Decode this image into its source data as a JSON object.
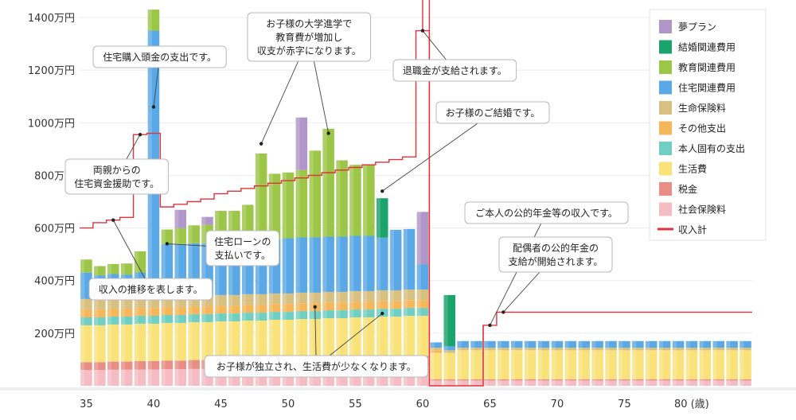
{
  "chart_data": {
    "type": "bar",
    "stacked": true,
    "x_unit": "歳",
    "x_start": 35,
    "x_end": 84,
    "x_ticks": [
      35,
      40,
      45,
      50,
      55,
      60,
      65,
      70,
      75,
      80
    ],
    "x_last_tick_suffix": " (歳)",
    "y_ticks": [
      200,
      400,
      600,
      800,
      1000,
      1200,
      1400
    ],
    "y_tick_suffix": "万円",
    "ylim": [
      0,
      1400
    ],
    "series": [
      {
        "key": "shakai",
        "name": "社会保険料",
        "color": "#f6bcc4"
      },
      {
        "key": "zeikin",
        "name": "税金",
        "color": "#e88e86"
      },
      {
        "key": "seikatsu",
        "name": "生活費",
        "color": "#f9e27a"
      },
      {
        "key": "honnin",
        "name": "本人固有の支出",
        "color": "#6fcfc2"
      },
      {
        "key": "sonota",
        "name": "その他支出",
        "color": "#f6b75a"
      },
      {
        "key": "seimei",
        "name": "生命保険料",
        "color": "#d8c080"
      },
      {
        "key": "jutaku",
        "name": "住宅関連費用",
        "color": "#5aa9e6"
      },
      {
        "key": "kyoiku",
        "name": "教育関連費用",
        "color": "#9cc648"
      },
      {
        "key": "kekkon",
        "name": "結婚関連費用",
        "color": "#1aa36a"
      },
      {
        "key": "yume",
        "name": "夢プラン",
        "color": "#b196c9"
      }
    ],
    "legend_order": [
      "yume",
      "kekkon",
      "kyoiku",
      "jutaku",
      "seimei",
      "sonota",
      "honnin",
      "seikatsu",
      "zeikin",
      "shakai",
      "income"
    ],
    "income_series": {
      "key": "income",
      "name": "収入計",
      "color": "#e0323a"
    },
    "bars": [
      {
        "age": 35,
        "shakai": 60,
        "zeikin": 30,
        "seikatsu": 140,
        "honnin": 30,
        "sonota": 30,
        "seimei": 40,
        "jutaku": 100,
        "kyoiku": 50,
        "kekkon": 0,
        "yume": 0
      },
      {
        "age": 36,
        "shakai": 60,
        "zeikin": 30,
        "seikatsu": 140,
        "honnin": 30,
        "sonota": 30,
        "seimei": 40,
        "jutaku": 90,
        "kyoiku": 35,
        "kekkon": 0,
        "yume": 0
      },
      {
        "age": 37,
        "shakai": 61,
        "zeikin": 31,
        "seikatsu": 141,
        "honnin": 30,
        "sonota": 30,
        "seimei": 40,
        "jutaku": 92,
        "kyoiku": 38,
        "kekkon": 0,
        "yume": 0
      },
      {
        "age": 38,
        "shakai": 61,
        "zeikin": 31,
        "seikatsu": 141,
        "honnin": 30,
        "sonota": 30,
        "seimei": 40,
        "jutaku": 90,
        "kyoiku": 42,
        "kekkon": 0,
        "yume": 0
      },
      {
        "age": 39,
        "shakai": 62,
        "zeikin": 32,
        "seikatsu": 142,
        "honnin": 30,
        "sonota": 30,
        "seimei": 40,
        "jutaku": 95,
        "kyoiku": 80,
        "kekkon": 0,
        "yume": 0
      },
      {
        "age": 40,
        "shakai": 62,
        "zeikin": 32,
        "seikatsu": 142,
        "honnin": 30,
        "sonota": 30,
        "seimei": 40,
        "jutaku": 1014,
        "kyoiku": 80,
        "kekkon": 0,
        "yume": 0
      },
      {
        "age": 41,
        "shakai": 63,
        "zeikin": 33,
        "seikatsu": 143,
        "honnin": 30,
        "sonota": 30,
        "seimei": 40,
        "jutaku": 200,
        "kyoiku": 55,
        "kekkon": 0,
        "yume": 0
      },
      {
        "age": 42,
        "shakai": 63,
        "zeikin": 33,
        "seikatsu": 143,
        "honnin": 30,
        "sonota": 30,
        "seimei": 40,
        "jutaku": 200,
        "kyoiku": 60,
        "kekkon": 0,
        "yume": 70
      },
      {
        "age": 43,
        "shakai": 64,
        "zeikin": 34,
        "seikatsu": 144,
        "honnin": 30,
        "sonota": 30,
        "seimei": 40,
        "jutaku": 200,
        "kyoiku": 68,
        "kekkon": 0,
        "yume": 0
      },
      {
        "age": 44,
        "shakai": 64,
        "zeikin": 34,
        "seikatsu": 144,
        "honnin": 30,
        "sonota": 30,
        "seimei": 40,
        "jutaku": 200,
        "kyoiku": 70,
        "kekkon": 0,
        "yume": 30
      },
      {
        "age": 45,
        "shakai": 65,
        "zeikin": 35,
        "seikatsu": 145,
        "honnin": 30,
        "sonota": 30,
        "seimei": 40,
        "jutaku": 200,
        "kyoiku": 120,
        "kekkon": 0,
        "yume": 0
      },
      {
        "age": 46,
        "shakai": 65,
        "zeikin": 35,
        "seikatsu": 145,
        "honnin": 30,
        "sonota": 30,
        "seimei": 40,
        "jutaku": 200,
        "kyoiku": 120,
        "kekkon": 0,
        "yume": 0
      },
      {
        "age": 47,
        "shakai": 66,
        "zeikin": 36,
        "seikatsu": 146,
        "honnin": 30,
        "sonota": 30,
        "seimei": 40,
        "jutaku": 205,
        "kyoiku": 135,
        "kekkon": 0,
        "yume": 0
      },
      {
        "age": 48,
        "shakai": 66,
        "zeikin": 36,
        "seikatsu": 146,
        "honnin": 30,
        "sonota": 30,
        "seimei": 40,
        "jutaku": 205,
        "kyoiku": 330,
        "kekkon": 0,
        "yume": 0
      },
      {
        "age": 49,
        "shakai": 67,
        "zeikin": 37,
        "seikatsu": 147,
        "honnin": 30,
        "sonota": 30,
        "seimei": 40,
        "jutaku": 205,
        "kyoiku": 250,
        "kekkon": 0,
        "yume": 0
      },
      {
        "age": 50,
        "shakai": 67,
        "zeikin": 37,
        "seikatsu": 147,
        "honnin": 30,
        "sonota": 30,
        "seimei": 40,
        "jutaku": 210,
        "kyoiku": 250,
        "kekkon": 0,
        "yume": 0
      },
      {
        "age": 51,
        "shakai": 68,
        "zeikin": 38,
        "seikatsu": 148,
        "honnin": 30,
        "sonota": 30,
        "seimei": 40,
        "jutaku": 210,
        "kyoiku": 256,
        "kekkon": 0,
        "yume": 200
      },
      {
        "age": 52,
        "shakai": 68,
        "zeikin": 38,
        "seikatsu": 148,
        "honnin": 30,
        "sonota": 30,
        "seimei": 40,
        "jutaku": 210,
        "kyoiku": 330,
        "kekkon": 0,
        "yume": 0
      },
      {
        "age": 53,
        "shakai": 69,
        "zeikin": 39,
        "seikatsu": 149,
        "honnin": 30,
        "sonota": 30,
        "seimei": 40,
        "jutaku": 210,
        "kyoiku": 410,
        "kekkon": 0,
        "yume": 0
      },
      {
        "age": 54,
        "shakai": 69,
        "zeikin": 39,
        "seikatsu": 149,
        "honnin": 30,
        "sonota": 30,
        "seimei": 40,
        "jutaku": 210,
        "kyoiku": 290,
        "kekkon": 0,
        "yume": 0
      },
      {
        "age": 55,
        "shakai": 70,
        "zeikin": 40,
        "seikatsu": 150,
        "honnin": 30,
        "sonota": 30,
        "seimei": 40,
        "jutaku": 210,
        "kyoiku": 270,
        "kekkon": 0,
        "yume": 0
      },
      {
        "age": 56,
        "shakai": 70,
        "zeikin": 40,
        "seikatsu": 150,
        "honnin": 30,
        "sonota": 30,
        "seimei": 40,
        "jutaku": 210,
        "kyoiku": 270,
        "kekkon": 0,
        "yume": 0
      },
      {
        "age": 57,
        "shakai": 71,
        "zeikin": 41,
        "seikatsu": 151,
        "honnin": 30,
        "sonota": 30,
        "seimei": 40,
        "jutaku": 200,
        "kyoiku": 0,
        "kekkon": 150,
        "yume": 0
      },
      {
        "age": 58,
        "shakai": 71,
        "zeikin": 41,
        "seikatsu": 151,
        "honnin": 30,
        "sonota": 30,
        "seimei": 40,
        "jutaku": 230,
        "kyoiku": 0,
        "kekkon": 0,
        "yume": 0
      },
      {
        "age": 59,
        "shakai": 72,
        "zeikin": 42,
        "seikatsu": 152,
        "honnin": 30,
        "sonota": 30,
        "seimei": 40,
        "jutaku": 230,
        "kyoiku": 0,
        "kekkon": 0,
        "yume": 0
      },
      {
        "age": 60,
        "shakai": 72,
        "zeikin": 42,
        "seikatsu": 152,
        "honnin": 30,
        "sonota": 30,
        "seimei": 40,
        "jutaku": 95,
        "kyoiku": 0,
        "kekkon": 0,
        "yume": 200
      },
      {
        "age": 61,
        "shakai": 20,
        "zeikin": 5,
        "seikatsu": 100,
        "honnin": 0,
        "sonota": 10,
        "seimei": 10,
        "jutaku": 20,
        "kyoiku": 0,
        "kekkon": 0,
        "yume": 0
      },
      {
        "age": 62,
        "shakai": 20,
        "zeikin": 5,
        "seikatsu": 100,
        "honnin": 0,
        "sonota": 0,
        "seimei": 10,
        "jutaku": 15,
        "kyoiku": 0,
        "kekkon": 195,
        "yume": 0
      },
      {
        "age": 63,
        "shakai": 20,
        "zeikin": 5,
        "seikatsu": 110,
        "honnin": 0,
        "sonota": 0,
        "seimei": 10,
        "jutaku": 25,
        "kyoiku": 0,
        "kekkon": 0,
        "yume": 0
      },
      {
        "age": 64,
        "shakai": 20,
        "zeikin": 5,
        "seikatsu": 110,
        "honnin": 0,
        "sonota": 0,
        "seimei": 10,
        "jutaku": 25,
        "kyoiku": 0,
        "kekkon": 0,
        "yume": 0
      },
      {
        "age": 65,
        "shakai": 20,
        "zeikin": 5,
        "seikatsu": 110,
        "honnin": 0,
        "sonota": 0,
        "seimei": 10,
        "jutaku": 25,
        "kyoiku": 0,
        "kekkon": 0,
        "yume": 0
      },
      {
        "age": 66,
        "shakai": 20,
        "zeikin": 5,
        "seikatsu": 110,
        "honnin": 0,
        "sonota": 0,
        "seimei": 10,
        "jutaku": 25,
        "kyoiku": 0,
        "kekkon": 0,
        "yume": 0
      },
      {
        "age": 67,
        "shakai": 20,
        "zeikin": 5,
        "seikatsu": 110,
        "honnin": 0,
        "sonota": 0,
        "seimei": 10,
        "jutaku": 25,
        "kyoiku": 0,
        "kekkon": 0,
        "yume": 0
      },
      {
        "age": 68,
        "shakai": 20,
        "zeikin": 5,
        "seikatsu": 110,
        "honnin": 0,
        "sonota": 0,
        "seimei": 10,
        "jutaku": 25,
        "kyoiku": 0,
        "kekkon": 0,
        "yume": 0
      },
      {
        "age": 69,
        "shakai": 20,
        "zeikin": 5,
        "seikatsu": 110,
        "honnin": 0,
        "sonota": 0,
        "seimei": 10,
        "jutaku": 25,
        "kyoiku": 0,
        "kekkon": 0,
        "yume": 0
      },
      {
        "age": 70,
        "shakai": 20,
        "zeikin": 5,
        "seikatsu": 110,
        "honnin": 0,
        "sonota": 0,
        "seimei": 10,
        "jutaku": 25,
        "kyoiku": 0,
        "kekkon": 0,
        "yume": 0
      },
      {
        "age": 71,
        "shakai": 20,
        "zeikin": 5,
        "seikatsu": 110,
        "honnin": 0,
        "sonota": 0,
        "seimei": 10,
        "jutaku": 25,
        "kyoiku": 0,
        "kekkon": 0,
        "yume": 0
      },
      {
        "age": 72,
        "shakai": 20,
        "zeikin": 5,
        "seikatsu": 110,
        "honnin": 0,
        "sonota": 0,
        "seimei": 10,
        "jutaku": 25,
        "kyoiku": 0,
        "kekkon": 0,
        "yume": 0
      },
      {
        "age": 73,
        "shakai": 20,
        "zeikin": 5,
        "seikatsu": 110,
        "honnin": 0,
        "sonota": 0,
        "seimei": 10,
        "jutaku": 25,
        "kyoiku": 0,
        "kekkon": 0,
        "yume": 0
      },
      {
        "age": 74,
        "shakai": 20,
        "zeikin": 5,
        "seikatsu": 110,
        "honnin": 0,
        "sonota": 0,
        "seimei": 10,
        "jutaku": 25,
        "kyoiku": 0,
        "kekkon": 0,
        "yume": 0
      },
      {
        "age": 75,
        "shakai": 20,
        "zeikin": 5,
        "seikatsu": 110,
        "honnin": 0,
        "sonota": 0,
        "seimei": 10,
        "jutaku": 25,
        "kyoiku": 0,
        "kekkon": 0,
        "yume": 0
      },
      {
        "age": 76,
        "shakai": 20,
        "zeikin": 5,
        "seikatsu": 110,
        "honnin": 0,
        "sonota": 0,
        "seimei": 10,
        "jutaku": 25,
        "kyoiku": 0,
        "kekkon": 0,
        "yume": 0
      },
      {
        "age": 77,
        "shakai": 20,
        "zeikin": 5,
        "seikatsu": 110,
        "honnin": 0,
        "sonota": 0,
        "seimei": 10,
        "jutaku": 25,
        "kyoiku": 0,
        "kekkon": 0,
        "yume": 0
      },
      {
        "age": 78,
        "shakai": 20,
        "zeikin": 5,
        "seikatsu": 110,
        "honnin": 0,
        "sonota": 0,
        "seimei": 10,
        "jutaku": 25,
        "kyoiku": 0,
        "kekkon": 0,
        "yume": 0
      },
      {
        "age": 79,
        "shakai": 20,
        "zeikin": 5,
        "seikatsu": 110,
        "honnin": 0,
        "sonota": 0,
        "seimei": 10,
        "jutaku": 25,
        "kyoiku": 0,
        "kekkon": 0,
        "yume": 0
      },
      {
        "age": 80,
        "shakai": 20,
        "zeikin": 5,
        "seikatsu": 110,
        "honnin": 0,
        "sonota": 0,
        "seimei": 10,
        "jutaku": 25,
        "kyoiku": 0,
        "kekkon": 0,
        "yume": 0
      },
      {
        "age": 81,
        "shakai": 20,
        "zeikin": 5,
        "seikatsu": 110,
        "honnin": 0,
        "sonota": 0,
        "seimei": 10,
        "jutaku": 25,
        "kyoiku": 0,
        "kekkon": 0,
        "yume": 0
      },
      {
        "age": 82,
        "shakai": 20,
        "zeikin": 5,
        "seikatsu": 110,
        "honnin": 0,
        "sonota": 0,
        "seimei": 10,
        "jutaku": 25,
        "kyoiku": 0,
        "kekkon": 0,
        "yume": 0
      },
      {
        "age": 83,
        "shakai": 20,
        "zeikin": 5,
        "seikatsu": 110,
        "honnin": 0,
        "sonota": 0,
        "seimei": 10,
        "jutaku": 25,
        "kyoiku": 0,
        "kekkon": 0,
        "yume": 0
      },
      {
        "age": 84,
        "shakai": 20,
        "zeikin": 5,
        "seikatsu": 110,
        "honnin": 0,
        "sonota": 0,
        "seimei": 10,
        "jutaku": 25,
        "kyoiku": 0,
        "kekkon": 0,
        "yume": 0
      }
    ],
    "income_line": [
      {
        "age": 35,
        "value": 600
      },
      {
        "age": 36,
        "value": 620
      },
      {
        "age": 37,
        "value": 630
      },
      {
        "age": 38,
        "value": 640
      },
      {
        "age": 39,
        "value": 955
      },
      {
        "age": 40,
        "value": 960
      },
      {
        "age": 41,
        "value": 680
      },
      {
        "age": 42,
        "value": 690
      },
      {
        "age": 43,
        "value": 700
      },
      {
        "age": 44,
        "value": 710
      },
      {
        "age": 45,
        "value": 730
      },
      {
        "age": 46,
        "value": 740
      },
      {
        "age": 47,
        "value": 750
      },
      {
        "age": 48,
        "value": 760
      },
      {
        "age": 49,
        "value": 770
      },
      {
        "age": 50,
        "value": 780
      },
      {
        "age": 51,
        "value": 790
      },
      {
        "age": 52,
        "value": 800
      },
      {
        "age": 53,
        "value": 810
      },
      {
        "age": 54,
        "value": 820
      },
      {
        "age": 55,
        "value": 830
      },
      {
        "age": 56,
        "value": 840
      },
      {
        "age": 57,
        "value": 850
      },
      {
        "age": 58,
        "value": 860
      },
      {
        "age": 59,
        "value": 870
      },
      {
        "age": 60,
        "value": 1350
      },
      {
        "age": 61,
        "value": 0
      },
      {
        "age": 62,
        "value": 0
      },
      {
        "age": 63,
        "value": 0
      },
      {
        "age": 64,
        "value": 0
      },
      {
        "age": 65,
        "value": 230
      },
      {
        "age": 66,
        "value": 280
      },
      {
        "age": 67,
        "value": 280
      },
      {
        "age": 84,
        "value": 280
      }
    ],
    "annotations": [
      {
        "text": "住宅購入頭金の支出です。",
        "age": 40,
        "value": 1060
      },
      {
        "text": "お子様の大学進学で\n教育費が増加し\n収支が赤字になります。",
        "age": 48,
        "value": 920
      },
      {
        "text": "お子様の大学進学で\n教育費が増加し\n収支が赤字になります。",
        "age": 53,
        "value": 960
      },
      {
        "text": "退職金が支給されます。",
        "age": 60,
        "value": 1350
      },
      {
        "text": "お子様のご結婚です。",
        "age": 57,
        "value": 740
      },
      {
        "text": "両親からの\n住宅資金援助です。",
        "age": 39,
        "value": 955
      },
      {
        "text": "住宅ローンの\n支払いです。",
        "age": 41,
        "value": 540
      },
      {
        "text": "収入の推移を表します。",
        "age": 37,
        "value": 630
      },
      {
        "text": "ご本人の公的年金等の収入です。",
        "age": 65,
        "value": 230
      },
      {
        "text": "配偶者の公的年金の\n支給が開始されます。",
        "age": 66,
        "value": 280
      },
      {
        "text": "お子様が独立され、生活費が少なくなります。",
        "age": 52,
        "value": 300
      }
    ]
  },
  "labels": {
    "callout_house_down": "住宅購入頭金の支出です。",
    "callout_university": "お子様の大学進学で\n教育費が増加し\n収支が赤字になります。",
    "callout_retirement": "退職金が支給されます。",
    "callout_wedding": "お子様のご結婚です。",
    "callout_parents": "両親からの\n住宅資金援助です。",
    "callout_loan": "住宅ローンの\n支払いです。",
    "callout_income": "収入の推移を表します。",
    "callout_pension_self": "ご本人の公的年金等の収入です。",
    "callout_pension_spouse": "配偶者の公的年金の\n支給が開始されます。",
    "callout_independent": "お子様が独立され、生活費が少なくなります。"
  }
}
